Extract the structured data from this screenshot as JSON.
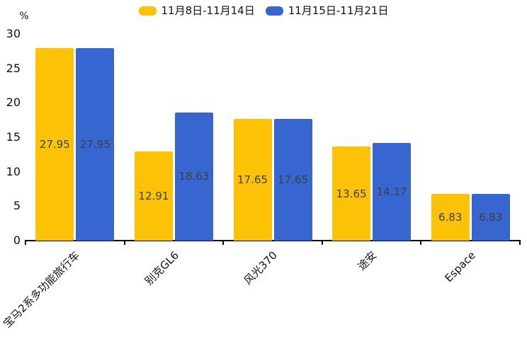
{
  "legend": {
    "items": [
      {
        "label": "11月8日-11月14日",
        "color": "#FCC306"
      },
      {
        "label": "11月15日-11月21日",
        "color": "#3766D0"
      }
    ]
  },
  "chart_data": {
    "type": "bar",
    "title": "",
    "xlabel": "",
    "ylabel": "%",
    "categories": [
      "宝马2系多功能旅行车",
      "别克GL6",
      "风光370",
      "途安",
      "Espace"
    ],
    "series": [
      {
        "name": "11月8日-11月14日",
        "color": "#FCC306",
        "values": [
          27.95,
          12.91,
          17.65,
          13.65,
          6.83
        ]
      },
      {
        "name": "11月15日-11月21日",
        "color": "#3766D0",
        "values": [
          27.95,
          18.63,
          17.65,
          14.17,
          6.83
        ]
      }
    ],
    "value_labels": [
      "27.95",
      "12.91",
      "17.65",
      "13.65",
      "6.83",
      "27.95",
      "18.63",
      "17.65",
      "14.17",
      "6.83"
    ],
    "ylim": [
      0,
      30
    ],
    "yticks": [
      0,
      5,
      10,
      15,
      20,
      25,
      30
    ],
    "grid": false,
    "legend_position": "top-center",
    "value_label_position": "inside-center",
    "category_label_rotation_deg": 45,
    "colors": {
      "axis": "#0a0a0a",
      "tick_text": "#121212",
      "value_label_text": "#3f3f3f",
      "background": "#ffffff"
    }
  }
}
